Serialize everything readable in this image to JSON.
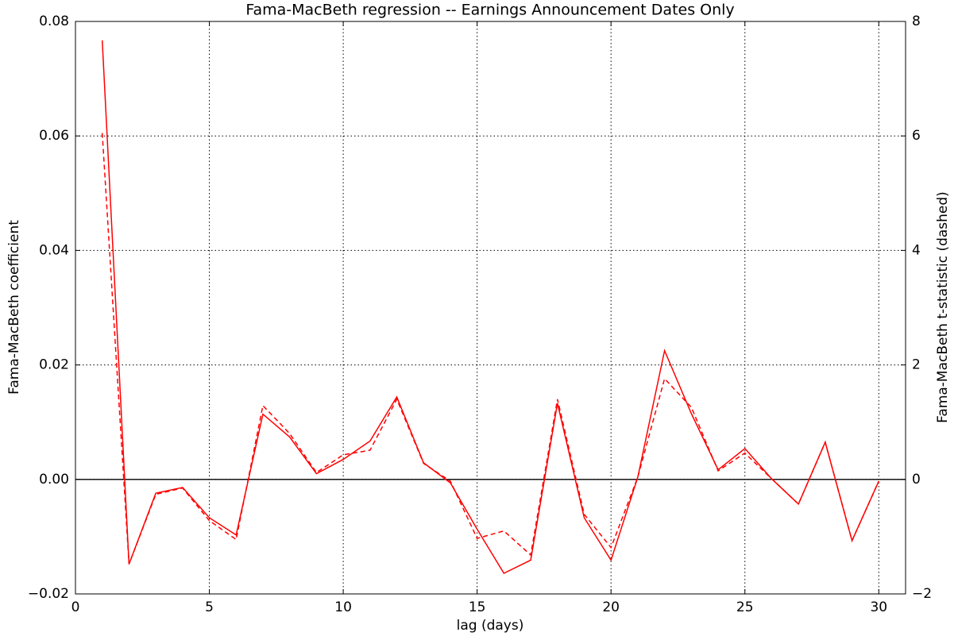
{
  "chart_data": {
    "type": "line",
    "title": "Fama-MacBeth regression -- Earnings Announcement Dates Only",
    "xlabel": "lag (days)",
    "ylabel": "Fama-MacBeth coefficient",
    "y2label": "Fama-MacBeth t-statistic (dashed)",
    "x": [
      1,
      2,
      3,
      4,
      5,
      6,
      7,
      8,
      9,
      10,
      11,
      12,
      13,
      14,
      15,
      16,
      17,
      18,
      19,
      20,
      21,
      22,
      23,
      24,
      25,
      26,
      27,
      28,
      29,
      30
    ],
    "series": [
      {
        "name": "Fama-MacBeth coefficient",
        "color": "#ff0000",
        "dash": false,
        "values": [
          0.0767,
          -0.0148,
          -0.0024,
          -0.0014,
          -0.0067,
          -0.0097,
          0.0114,
          0.0074,
          0.001,
          0.0035,
          0.0067,
          0.0144,
          0.0029,
          -0.0006,
          -0.0087,
          -0.0164,
          -0.0141,
          0.0133,
          -0.0067,
          -0.0141,
          0.0004,
          0.0225,
          0.0115,
          0.0017,
          0.0054,
          0.0001,
          -0.0043,
          0.0065,
          -0.0107,
          -0.0003
        ]
      },
      {
        "name": "Fama-MacBeth t-statistic",
        "color": "#ff0000",
        "dash": true,
        "axis": "y2",
        "values": [
          6.05,
          -1.48,
          -0.26,
          -0.15,
          -0.72,
          -1.05,
          1.29,
          0.8,
          0.12,
          0.43,
          0.51,
          1.4,
          0.28,
          -0.03,
          -1.03,
          -0.9,
          -1.32,
          1.4,
          -0.61,
          -1.19,
          0.04,
          1.76,
          1.26,
          0.15,
          0.46,
          0.01,
          -0.43,
          0.65,
          -1.07,
          -0.03
        ]
      }
    ],
    "xlim": [
      0,
      31
    ],
    "xticks": [
      0,
      5,
      10,
      15,
      20,
      25,
      30
    ],
    "ylim": [
      -0.02,
      0.08
    ],
    "yticks": [
      {
        "value": -0.02,
        "label": "−0.02"
      },
      {
        "value": 0,
        "label": "0.00"
      },
      {
        "value": 0.02,
        "label": "0.02"
      },
      {
        "value": 0.04,
        "label": "0.04"
      },
      {
        "value": 0.06,
        "label": "0.06"
      },
      {
        "value": 0.08,
        "label": "0.08"
      }
    ],
    "y2lim": [
      -2,
      8
    ],
    "y2ticks": [
      {
        "value": -2,
        "label": "−2"
      },
      0,
      2,
      4,
      6,
      8
    ],
    "hlines": [
      0
    ],
    "grid": true
  }
}
